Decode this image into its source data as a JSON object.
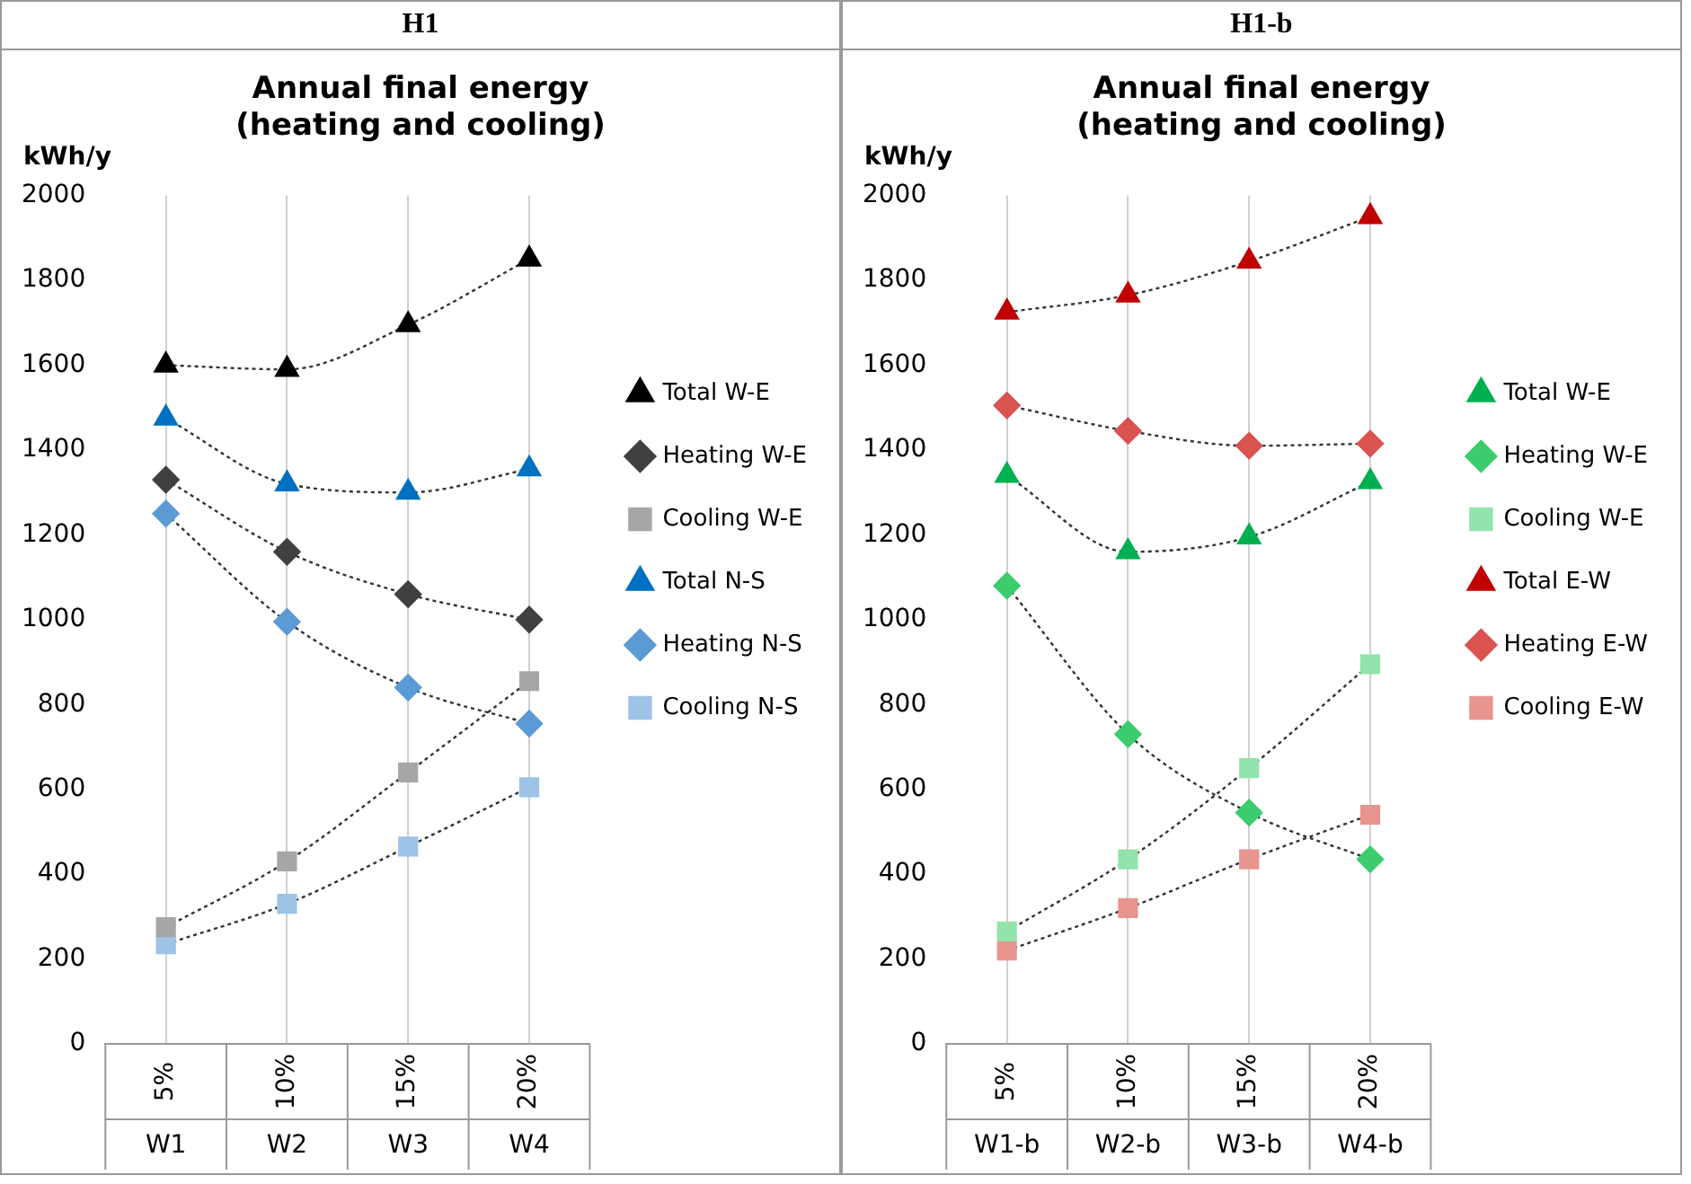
{
  "chart_data": [
    {
      "type": "line",
      "title": "H1",
      "subtitle": "Annual final energy (heating and cooling)",
      "ylabel": "kWh/y",
      "categories": [
        "5%\nW1",
        "10%\nW2",
        "15%\nW3",
        "20%\nW4"
      ],
      "ylim": [
        0,
        2000
      ],
      "yticks": [
        0,
        200,
        400,
        600,
        800,
        1000,
        1200,
        1400,
        1600,
        1800,
        2000
      ],
      "grid": "x",
      "legend": "right",
      "line_style": "dotted",
      "series": [
        {
          "name": "Total W-E",
          "color": "#000000",
          "marker": "triangle",
          "values": [
            1600,
            1590,
            1695,
            1850
          ]
        },
        {
          "name": "Heating W-E",
          "color": "#404040",
          "marker": "diamond",
          "values": [
            1330,
            1160,
            1060,
            1000
          ]
        },
        {
          "name": "Cooling W-E",
          "color": "#a6a6a6",
          "marker": "square",
          "values": [
            275,
            430,
            640,
            855
          ]
        },
        {
          "name": "Total N-S",
          "color": "#0070c0",
          "marker": "triangle",
          "values": [
            1475,
            1320,
            1300,
            1355
          ]
        },
        {
          "name": "Heating N-S",
          "color": "#5b9bd5",
          "marker": "diamond",
          "values": [
            1250,
            995,
            840,
            755
          ]
        },
        {
          "name": "Cooling N-S",
          "color": "#9dc3e6",
          "marker": "square",
          "values": [
            235,
            330,
            465,
            605
          ]
        }
      ]
    },
    {
      "type": "line",
      "title": "H1-b",
      "subtitle": "Annual final energy (heating and cooling)",
      "ylabel": "kWh/y",
      "categories": [
        "5%\nW1-b",
        "10%\nW2-b",
        "15%\nW3-b",
        "20%\nW4-b"
      ],
      "ylim": [
        0,
        2000
      ],
      "yticks": [
        0,
        200,
        400,
        600,
        800,
        1000,
        1200,
        1400,
        1600,
        1800,
        2000
      ],
      "grid": "x",
      "legend": "right",
      "line_style": "dotted",
      "series": [
        {
          "name": "Total W-E",
          "color": "#00b050",
          "marker": "triangle",
          "values": [
            1340,
            1160,
            1195,
            1325
          ]
        },
        {
          "name": "Heating W-E",
          "color": "#3ccc6e",
          "marker": "diamond",
          "values": [
            1080,
            730,
            545,
            435
          ]
        },
        {
          "name": "Cooling W-E",
          "color": "#92e3ac",
          "marker": "square",
          "values": [
            265,
            435,
            650,
            895
          ]
        },
        {
          "name": "Total E-W",
          "color": "#c00000",
          "marker": "triangle",
          "values": [
            1725,
            1765,
            1845,
            1950
          ]
        },
        {
          "name": "Heating E-W",
          "color": "#d9534f",
          "marker": "diamond",
          "values": [
            1505,
            1445,
            1410,
            1415
          ]
        },
        {
          "name": "Cooling E-W",
          "color": "#e8948f",
          "marker": "square",
          "values": [
            220,
            320,
            435,
            540
          ]
        }
      ]
    }
  ]
}
